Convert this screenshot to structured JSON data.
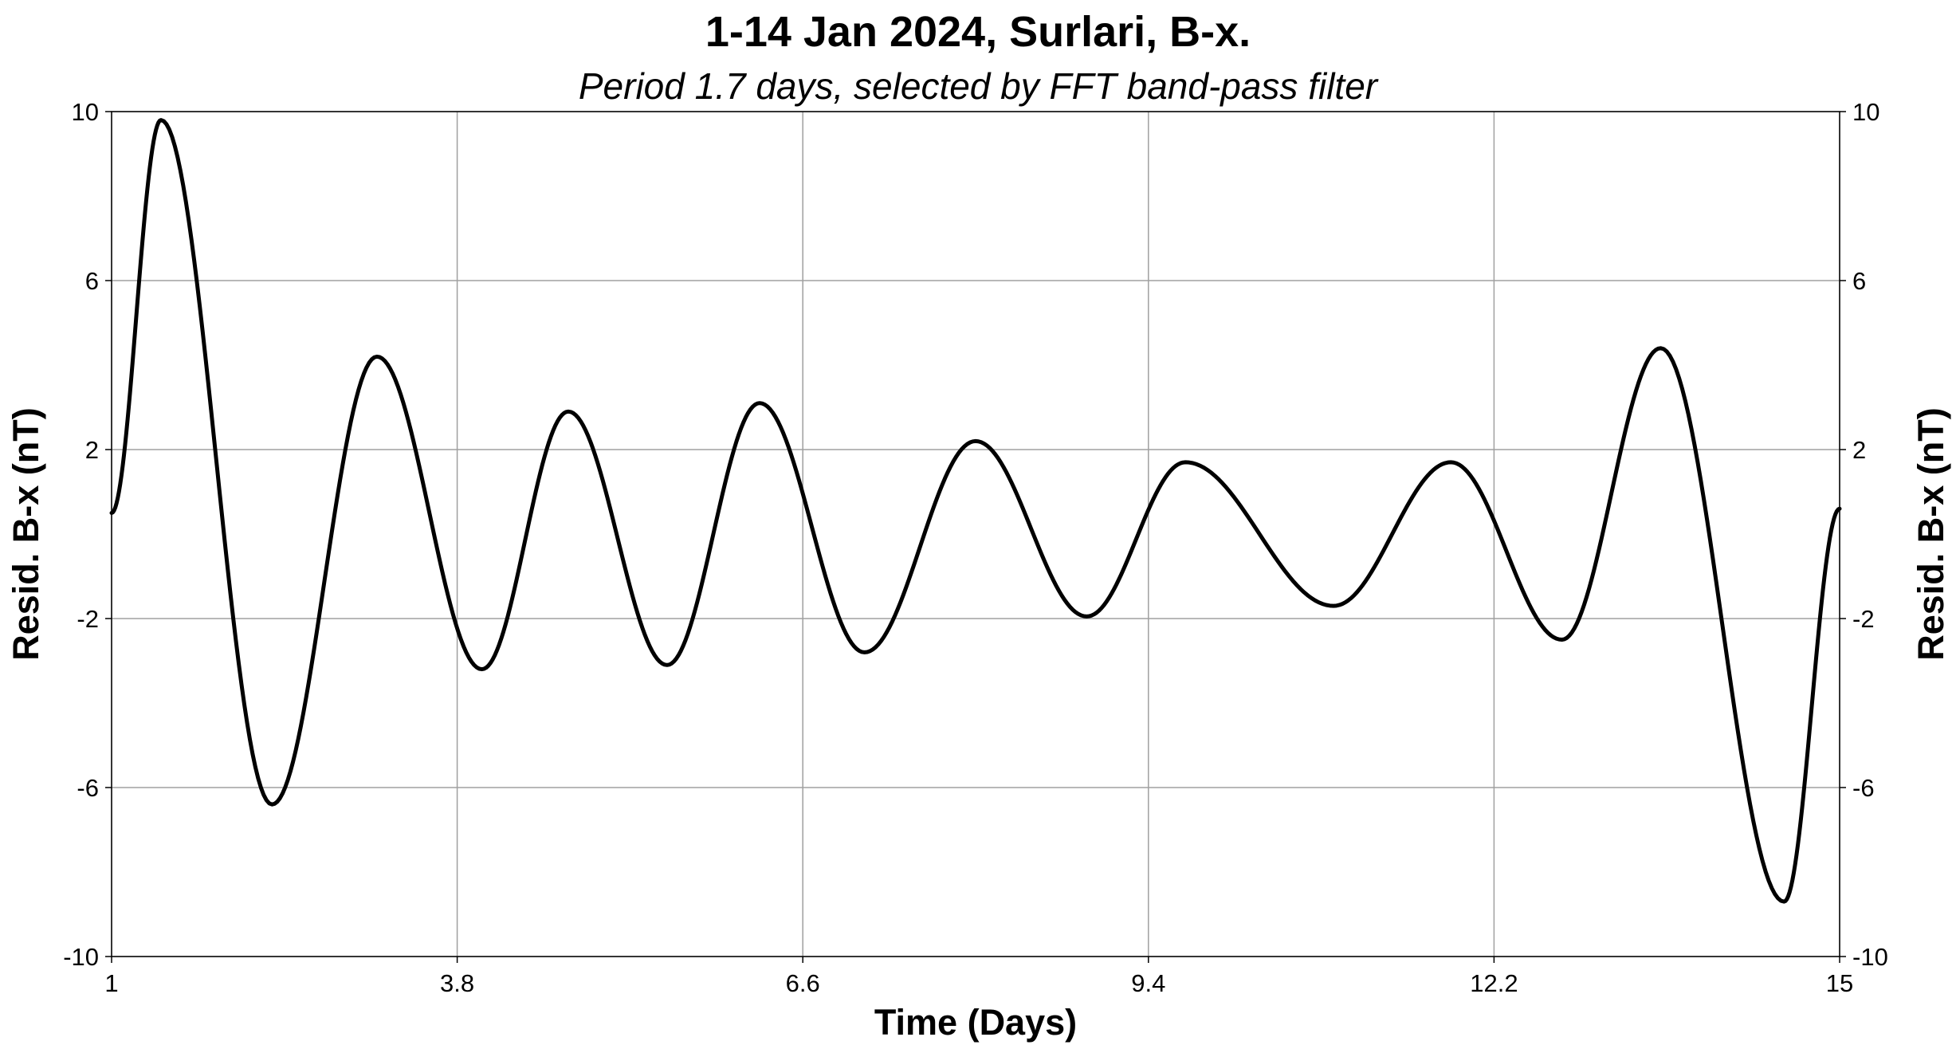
{
  "chart_data": {
    "type": "line",
    "title": "1-14 Jan 2024, Surlari, B-x.",
    "subtitle": "Period 1.7 days, selected by FFT band-pass filter",
    "xlabel": "Time (Days)",
    "ylabel": "Resid. B-x (nT)",
    "ylabel_right": "Resid. B-x (nT)",
    "xlim": [
      1,
      15
    ],
    "ylim": [
      -10,
      10
    ],
    "x_ticks": [
      "1",
      "3.8",
      "6.6",
      "9.4",
      "12.2",
      "15"
    ],
    "x_tick_values": [
      1,
      3.8,
      6.6,
      9.4,
      12.2,
      15
    ],
    "y_ticks": [
      "10",
      "6",
      "2",
      "-2",
      "-6",
      "-10"
    ],
    "y_tick_values": [
      10,
      6,
      2,
      -2,
      -6,
      -10
    ],
    "grid": true,
    "line_color": "#000000",
    "series": [
      {
        "extrema": [
          [
            1.0,
            0.5
          ],
          [
            1.4,
            9.8
          ],
          [
            2.3,
            -6.4
          ],
          [
            3.15,
            4.2
          ],
          [
            4.0,
            -3.2
          ],
          [
            4.7,
            2.9
          ],
          [
            5.5,
            -3.1
          ],
          [
            6.25,
            3.1
          ],
          [
            7.1,
            -2.8
          ],
          [
            8.0,
            2.2
          ],
          [
            8.9,
            -1.95
          ],
          [
            9.7,
            1.7
          ],
          [
            10.9,
            -1.7
          ],
          [
            11.85,
            1.7
          ],
          [
            12.75,
            -2.5
          ],
          [
            13.55,
            4.4
          ],
          [
            14.55,
            -8.7
          ],
          [
            15.0,
            0.6
          ]
        ]
      }
    ]
  }
}
